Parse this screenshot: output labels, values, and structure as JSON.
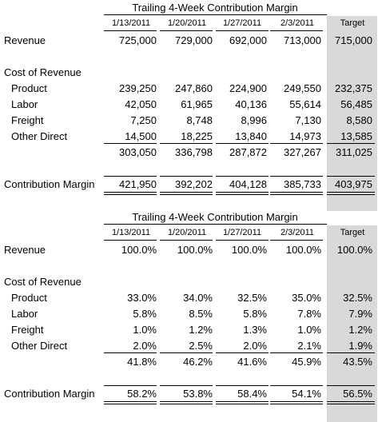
{
  "tables": [
    {
      "title": "Trailing 4-Week Contribution Margin",
      "headers": [
        "1/13/2011",
        "1/20/2011",
        "1/27/2011",
        "2/3/2011",
        "Target"
      ],
      "rows": {
        "revenue": {
          "label": "Revenue",
          "values": [
            "725,000",
            "729,000",
            "692,000",
            "713,000",
            "715,000"
          ]
        },
        "cost_header": {
          "label": "Cost of Revenue"
        },
        "product": {
          "label": "Product",
          "values": [
            "239,250",
            "247,860",
            "224,900",
            "249,550",
            "232,375"
          ]
        },
        "labor": {
          "label": "Labor",
          "values": [
            "42,050",
            "61,965",
            "40,136",
            "55,614",
            "56,485"
          ]
        },
        "freight": {
          "label": "Freight",
          "values": [
            "7,250",
            "8,748",
            "8,996",
            "7,130",
            "8,580"
          ]
        },
        "other_direct": {
          "label": "Other Direct",
          "values": [
            "14,500",
            "18,225",
            "13,840",
            "14,973",
            "13,585"
          ]
        },
        "total_cost": {
          "values": [
            "303,050",
            "336,798",
            "287,872",
            "327,267",
            "311,025"
          ]
        },
        "contribution_margin": {
          "label": "Contribution Margin",
          "values": [
            "421,950",
            "392,202",
            "404,128",
            "385,733",
            "403,975"
          ]
        }
      }
    },
    {
      "title": "Trailing 4-Week Contribution Margin",
      "headers": [
        "1/13/2011",
        "1/20/2011",
        "1/27/2011",
        "2/3/2011",
        "Target"
      ],
      "rows": {
        "revenue": {
          "label": "Revenue",
          "values": [
            "100.0%",
            "100.0%",
            "100.0%",
            "100.0%",
            "100.0%"
          ]
        },
        "cost_header": {
          "label": "Cost of Revenue"
        },
        "product": {
          "label": "Product",
          "values": [
            "33.0%",
            "34.0%",
            "32.5%",
            "35.0%",
            "32.5%"
          ]
        },
        "labor": {
          "label": "Labor",
          "values": [
            "5.8%",
            "8.5%",
            "5.8%",
            "7.8%",
            "7.9%"
          ]
        },
        "freight": {
          "label": "Freight",
          "values": [
            "1.0%",
            "1.2%",
            "1.3%",
            "1.0%",
            "1.2%"
          ]
        },
        "other_direct": {
          "label": "Other Direct",
          "values": [
            "2.0%",
            "2.5%",
            "2.0%",
            "2.1%",
            "1.9%"
          ]
        },
        "total_cost": {
          "values": [
            "41.8%",
            "46.2%",
            "41.6%",
            "45.9%",
            "43.5%"
          ]
        },
        "contribution_margin": {
          "label": "Contribution Margin",
          "values": [
            "58.2%",
            "53.8%",
            "58.4%",
            "54.1%",
            "56.5%"
          ]
        }
      }
    }
  ],
  "colors": {
    "target_column": "#d9d9d9",
    "text": "#000000",
    "background": "#ffffff"
  }
}
